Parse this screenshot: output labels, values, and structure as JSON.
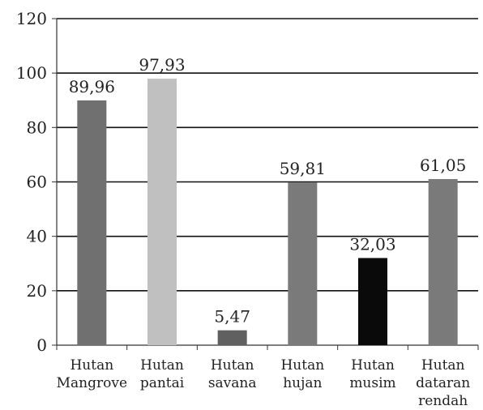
{
  "chart_data": {
    "type": "bar",
    "categories": [
      [
        "Hutan",
        "Mangrove"
      ],
      [
        "Hutan",
        "pantai"
      ],
      [
        "Hutan",
        "savana"
      ],
      [
        "Hutan",
        "hujan"
      ],
      [
        "Hutan",
        "musim"
      ],
      [
        "Hutan",
        "dataran",
        "rendah"
      ]
    ],
    "values": [
      89.96,
      97.93,
      5.47,
      59.81,
      32.03,
      61.05
    ],
    "data_labels": [
      "89,96",
      "97,93",
      "5,47",
      "59,81",
      "32,03",
      "61,05"
    ],
    "bar_colors": [
      "#707070",
      "#c0c0c0",
      "#606060",
      "#7a7a7a",
      "#0a0a0a",
      "#7a7a7a"
    ],
    "ylim": [
      0,
      120
    ],
    "yticks": [
      0,
      20,
      40,
      60,
      80,
      100,
      120
    ],
    "grid": true,
    "legend": "none",
    "title": "",
    "xlabel": "",
    "ylabel": ""
  }
}
